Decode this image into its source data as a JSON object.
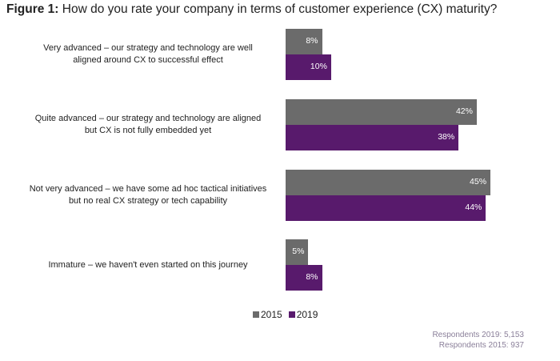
{
  "title_prefix": "Figure 1:",
  "title_text": " How do you rate your company in terms of customer experience (CX) maturity?",
  "chart_data": {
    "type": "bar",
    "orientation": "horizontal",
    "title": "Figure 1: How do you rate your company in terms of customer experience (CX) maturity?",
    "categories": [
      "Very advanced – our strategy and technology are well aligned around CX to successful effect",
      "Quite advanced – our strategy and technology are aligned but CX is not fully embedded yet",
      "Not very advanced – we have some ad hoc tactical initiatives but no real CX strategy or tech capability",
      "Immature – we haven't even started on this journey"
    ],
    "category_lines": [
      [
        "Very advanced – our strategy and technology are well",
        "aligned around CX to successful effect"
      ],
      [
        "Quite advanced – our strategy and technology are aligned",
        "but CX is not fully embedded yet"
      ],
      [
        "Not very advanced – we have some ad hoc tactical initiatives",
        "but no real CX strategy or tech capability"
      ],
      [
        "Immature – we haven't even started on this journey"
      ]
    ],
    "series": [
      {
        "name": "2015",
        "color": "#6b6b6b",
        "values": [
          8,
          42,
          45,
          5
        ],
        "labels": [
          "8%",
          "42%",
          "45%",
          "5%"
        ]
      },
      {
        "name": "2019",
        "color": "#581a6c",
        "values": [
          10,
          38,
          44,
          8
        ],
        "labels": [
          "10%",
          "38%",
          "44%",
          "8%"
        ]
      }
    ],
    "unit": "%",
    "legend": "bottom",
    "grid": false
  },
  "footnotes": [
    "Respondents 2019: 5,153",
    "Respondents 2015: 937"
  ]
}
